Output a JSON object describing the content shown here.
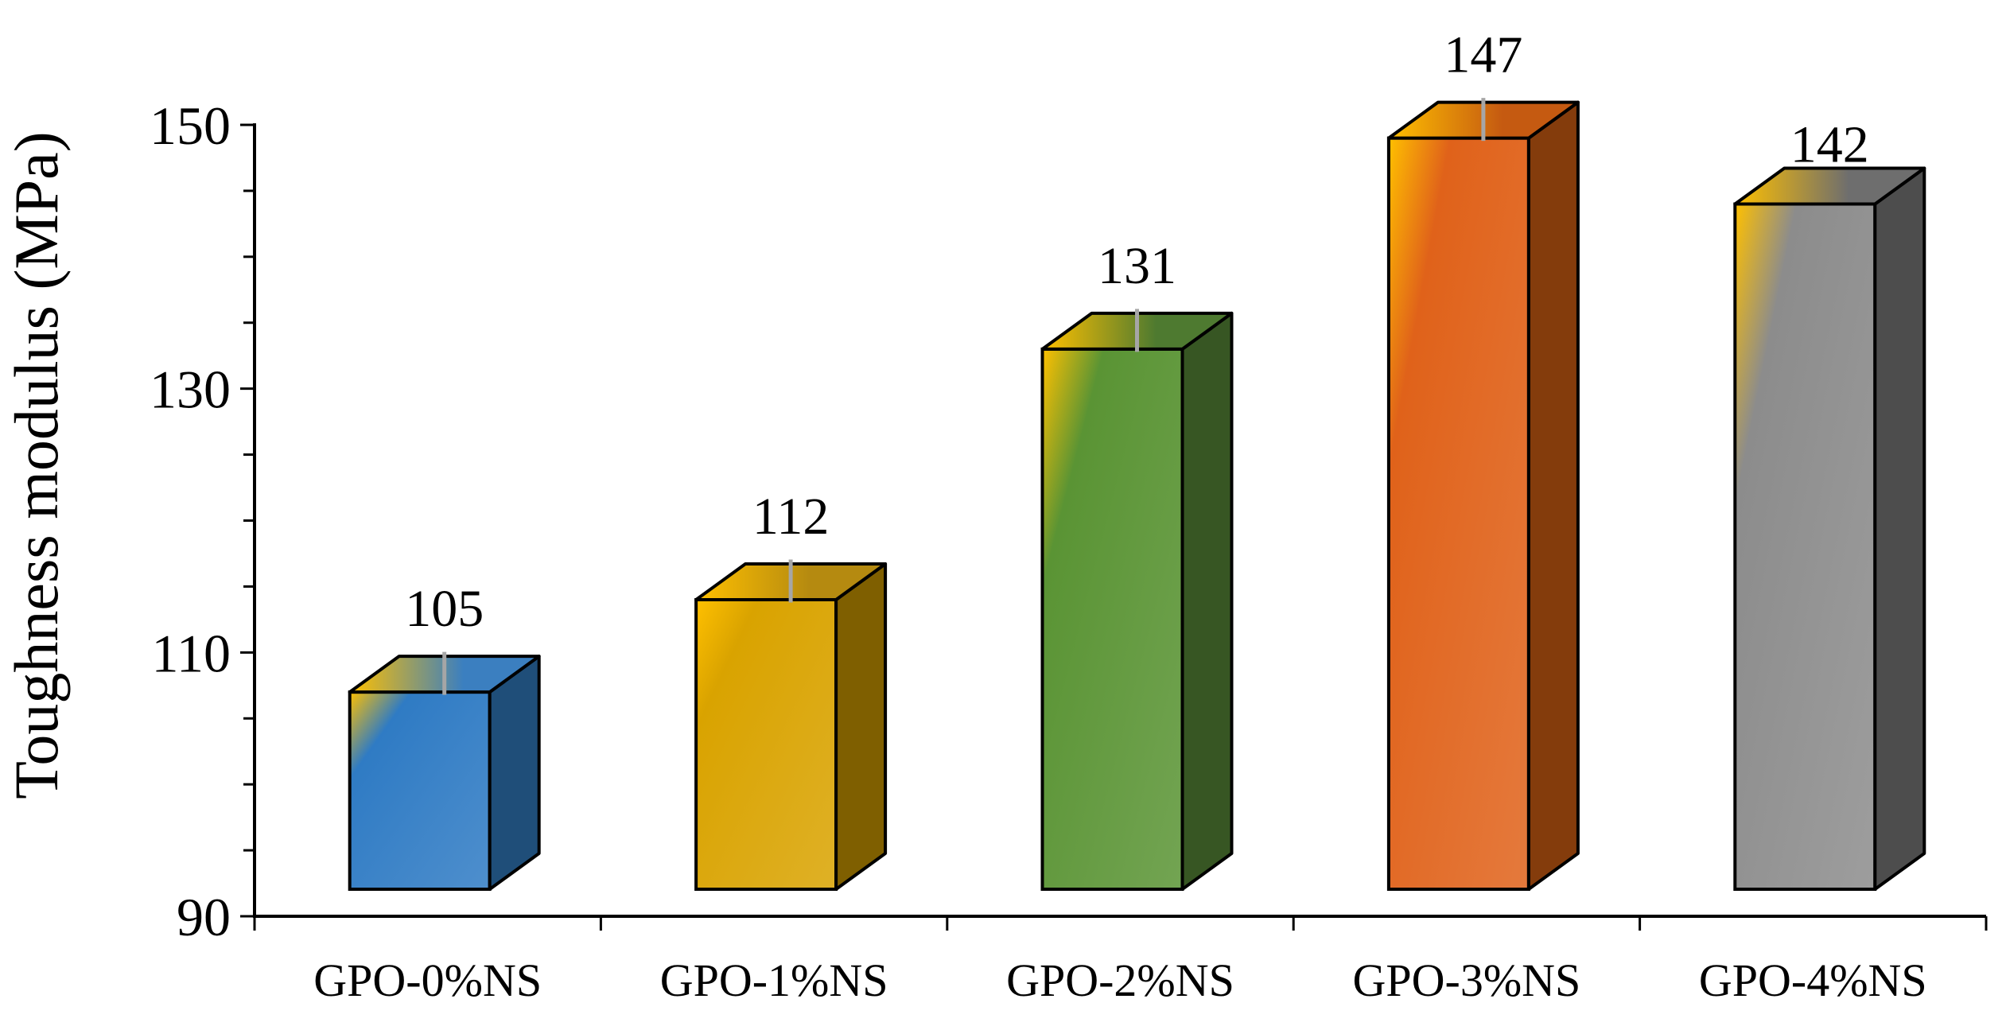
{
  "chart_data": {
    "type": "bar",
    "style": "3d-column",
    "title": "",
    "xlabel": "",
    "ylabel": "Toughness modulus (MPa)",
    "ylim": [
      90,
      150
    ],
    "yticks": [
      90,
      110,
      130,
      150
    ],
    "categories": [
      "GPO-0%NS",
      "GPO-1%NS",
      "GPO-2%NS",
      "GPO-3%NS",
      "GPO-4%NS"
    ],
    "series": [
      {
        "values": [
          105,
          112,
          131,
          147,
          142
        ],
        "bar_tops": [
          107,
          114,
          133,
          149,
          144
        ],
        "error_bars": [
          1,
          1,
          1,
          1,
          0
        ]
      }
    ],
    "data_labels": [
      "105",
      "112",
      "131",
      "147",
      "142"
    ],
    "grid": false,
    "legend": "none",
    "colors": {
      "bars": [
        "#2F7BC4",
        "#D9A300",
        "#5A9434",
        "#E0621A",
        "#8C8C8C"
      ],
      "sides": [
        "#1F4E79",
        "#7F5F00",
        "#375623",
        "#843C0C",
        "#4D4D4D"
      ],
      "tops": [
        "#3B7FC0",
        "#B58A10",
        "#4E7A30",
        "#C55A11",
        "#6E6E6E"
      ],
      "highlight": "#FFC000",
      "error_bar": "#A6A6A6",
      "axis": "#000000"
    }
  }
}
